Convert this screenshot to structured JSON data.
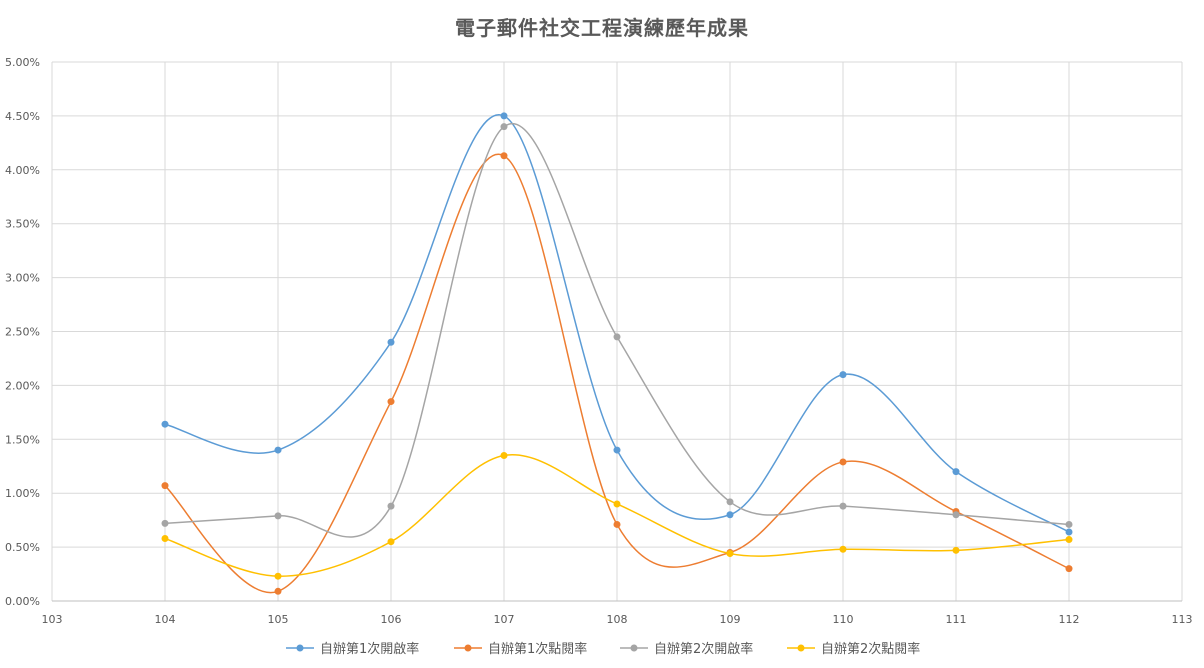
{
  "chart_data": {
    "type": "line",
    "smooth": true,
    "title": "電子郵件社交工程演練歷年成果",
    "xlabel": "",
    "ylabel": "",
    "xlim": [
      103,
      113
    ],
    "ylim": [
      0,
      5
    ],
    "x_ticks": [
      103,
      104,
      105,
      106,
      107,
      108,
      109,
      110,
      111,
      112,
      113
    ],
    "y_ticks": [
      0,
      0.5,
      1,
      1.5,
      2,
      2.5,
      3,
      3.5,
      4,
      4.5,
      5
    ],
    "y_tick_labels": [
      "0.00%",
      "0.50%",
      "1.00%",
      "1.50%",
      "2.00%",
      "2.50%",
      "3.00%",
      "3.50%",
      "4.00%",
      "4.50%",
      "5.00%"
    ],
    "grid": true,
    "legend_position": "bottom",
    "x": [
      104,
      105,
      106,
      107,
      108,
      109,
      110,
      111,
      112
    ],
    "series": [
      {
        "name": "自辦第1次開啟率",
        "color": "#5B9BD5",
        "values": [
          1.64,
          1.4,
          2.4,
          4.5,
          1.4,
          0.8,
          2.1,
          1.2,
          0.64
        ]
      },
      {
        "name": "自辦第1次點閱率",
        "color": "#ED7D31",
        "values": [
          1.07,
          0.09,
          1.85,
          4.13,
          0.71,
          0.45,
          1.29,
          0.83,
          0.3
        ]
      },
      {
        "name": "自辦第2次開啟率",
        "color": "#A5A5A5",
        "values": [
          0.72,
          0.79,
          0.88,
          4.4,
          2.45,
          0.92,
          0.88,
          0.8,
          0.71
        ]
      },
      {
        "name": "自辦第2次點閱率",
        "color": "#FFC000",
        "values": [
          0.58,
          0.23,
          0.55,
          1.35,
          0.9,
          0.44,
          0.48,
          0.47,
          0.57
        ]
      }
    ]
  }
}
